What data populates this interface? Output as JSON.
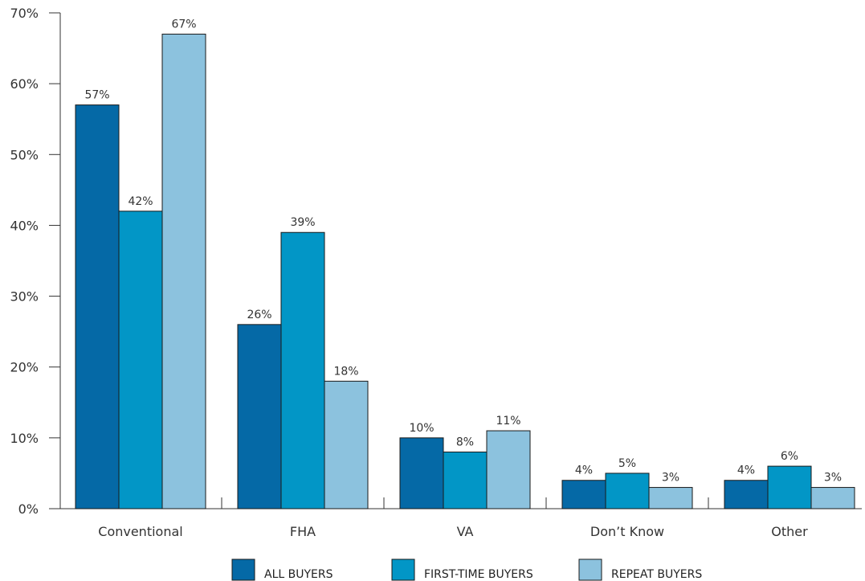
{
  "chart_data": {
    "type": "bar",
    "title": "",
    "xlabel": "",
    "ylabel": "",
    "ylim": [
      0,
      70
    ],
    "yticks": [
      0,
      10,
      20,
      30,
      40,
      50,
      60,
      70
    ],
    "ytick_labels": [
      "0%",
      "10%",
      "20%",
      "30%",
      "40%",
      "50%",
      "60%",
      "70%"
    ],
    "categories": [
      "Conventional",
      "FHA",
      "VA",
      "Don’t Know",
      "Other"
    ],
    "series": [
      {
        "name": "ALL BUYERS",
        "color": "#0569a6",
        "values": [
          57,
          26,
          10,
          4,
          4
        ],
        "labels": [
          "57%",
          "26%",
          "10%",
          "4%",
          "4%"
        ]
      },
      {
        "name": "FIRST-TIME BUYERS",
        "color": "#0296c6",
        "values": [
          42,
          39,
          8,
          5,
          6
        ],
        "labels": [
          "42%",
          "39%",
          "8%",
          "5%",
          "6%"
        ]
      },
      {
        "name": "REPEAT BUYERS",
        "color": "#8cc2de",
        "values": [
          67,
          18,
          11,
          3,
          3
        ],
        "labels": [
          "67%",
          "18%",
          "11%",
          "3%",
          "3%"
        ]
      }
    ],
    "grid": false,
    "legend_position": "bottom"
  }
}
